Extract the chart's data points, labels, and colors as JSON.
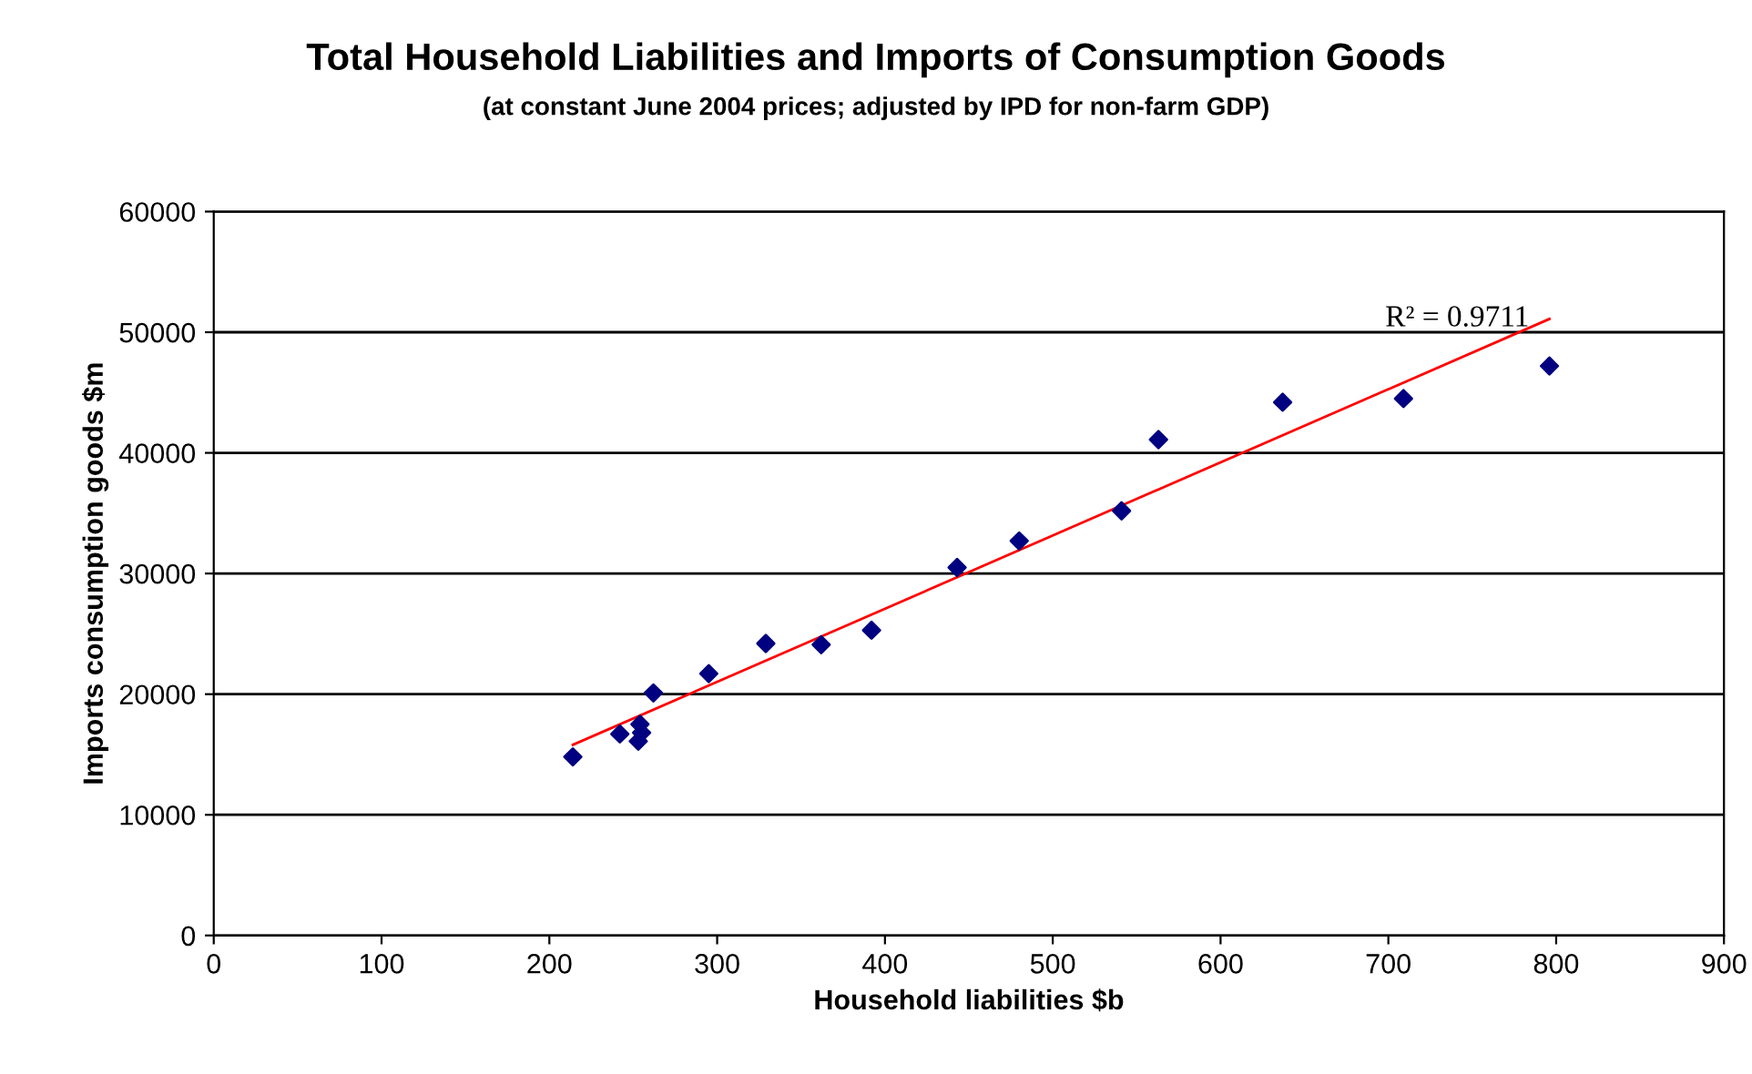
{
  "chart_data": {
    "type": "scatter",
    "title": "Total Household Liabilities and Imports of Consumption Goods",
    "subtitle": "(at constant June 2004 prices; adjusted by IPD for non-farm GDP)",
    "xlabel": "Household liabilities $b",
    "ylabel": "Imports consumption goods $m",
    "xlim": [
      0,
      900
    ],
    "xticks": [
      0,
      100,
      200,
      300,
      400,
      500,
      600,
      700,
      800,
      900
    ],
    "ylim": [
      0,
      60000
    ],
    "yticks": [
      0,
      10000,
      20000,
      30000,
      40000,
      50000,
      60000
    ],
    "grid": "y",
    "marker": "diamond",
    "legend": false,
    "series": [
      {
        "color": "#000080",
        "x": [
          214,
          242,
          253,
          255,
          254,
          262,
          295,
          329,
          362,
          392,
          443,
          480,
          541,
          563,
          637,
          709,
          796
        ],
        "values": [
          14800,
          16700,
          16100,
          16800,
          17500,
          20100,
          21700,
          24200,
          24100,
          25300,
          30500,
          32700,
          35200,
          41100,
          44200,
          44500,
          47200
        ]
      },
      {
        "type": "line",
        "marker": "none",
        "color": "#ff0000",
        "x": [
          214,
          796
        ],
        "values": [
          15800,
          51100
        ]
      }
    ],
    "annotations": [
      {
        "text": "R² = 0.9711",
        "x": 796,
        "y": 51100
      }
    ]
  }
}
